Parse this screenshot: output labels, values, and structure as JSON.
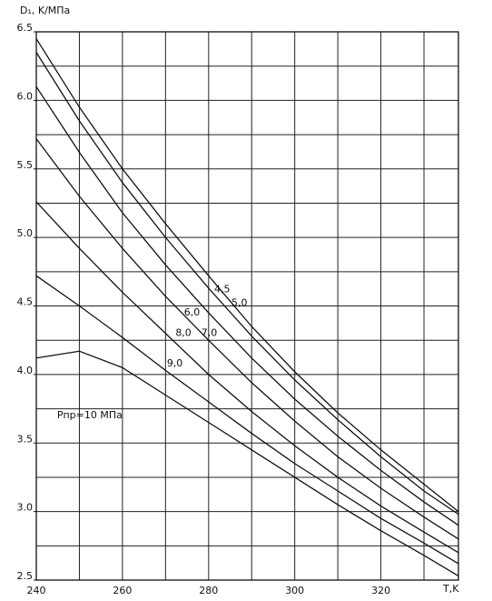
{
  "chart_data": {
    "type": "line",
    "y_label": "D₁, K/MПа",
    "x_label": "T,K",
    "x": [
      240,
      250,
      260,
      270,
      280,
      290,
      300,
      310,
      320,
      330,
      338
    ],
    "xlim": [
      240,
      338
    ],
    "xticks": [
      240,
      260,
      280,
      300,
      320
    ],
    "xgrid": [
      240,
      250,
      260,
      270,
      280,
      290,
      300,
      310,
      320,
      330
    ],
    "ylim": [
      2.5,
      6.5
    ],
    "yticks": [
      6.5,
      {
        "value": 6,
        "label": "6.0"
      },
      5.5,
      {
        "value": 5,
        "label": "5.0"
      },
      4.5,
      {
        "value": 4,
        "label": "4.0"
      },
      3.5,
      {
        "value": 3,
        "label": "3.0"
      },
      2.5
    ],
    "ygrid": [
      2.5,
      2.75,
      3,
      3.25,
      3.5,
      3.75,
      4,
      4.25,
      4.5,
      4.75,
      5,
      5.25,
      5.5,
      5.75,
      6,
      6.25,
      6.5
    ],
    "grid": true,
    "color": "#111111",
    "series": [
      {
        "name": "4,5",
        "values": [
          6.45,
          5.95,
          5.5,
          5.1,
          4.72,
          4.35,
          4.02,
          3.72,
          3.45,
          3.2,
          3.0
        ],
        "label_at": [
          285,
          4.62
        ]
      },
      {
        "name": "5,0",
        "values": [
          6.35,
          5.85,
          5.4,
          5.0,
          4.63,
          4.28,
          3.96,
          3.67,
          3.4,
          3.15,
          2.98
        ],
        "label_at": [
          289,
          4.52
        ]
      },
      {
        "name": "6,0",
        "values": [
          6.1,
          5.62,
          5.18,
          4.8,
          4.45,
          4.12,
          3.82,
          3.55,
          3.3,
          3.07,
          2.9
        ],
        "label_at": [
          278,
          4.45
        ]
      },
      {
        "name": "7,0",
        "values": [
          5.72,
          5.3,
          4.92,
          4.57,
          4.25,
          3.94,
          3.66,
          3.4,
          3.17,
          2.96,
          2.8
        ],
        "label_at": [
          282,
          4.3
        ]
      },
      {
        "name": "8,0",
        "values": [
          5.26,
          4.92,
          4.6,
          4.3,
          4.0,
          3.73,
          3.48,
          3.25,
          3.04,
          2.85,
          2.7
        ],
        "label_at": [
          276,
          4.3
        ]
      },
      {
        "name": "9,0",
        "values": [
          4.72,
          4.5,
          4.27,
          4.03,
          3.8,
          3.57,
          3.35,
          3.15,
          2.95,
          2.77,
          2.62
        ],
        "label_at": [
          274,
          4.08
        ]
      },
      {
        "name": "Pпр=10 MПа",
        "values": [
          4.12,
          4.17,
          4.05,
          3.85,
          3.65,
          3.45,
          3.25,
          3.05,
          2.86,
          2.68,
          2.53
        ],
        "label_at": [
          260,
          3.7
        ]
      }
    ]
  }
}
